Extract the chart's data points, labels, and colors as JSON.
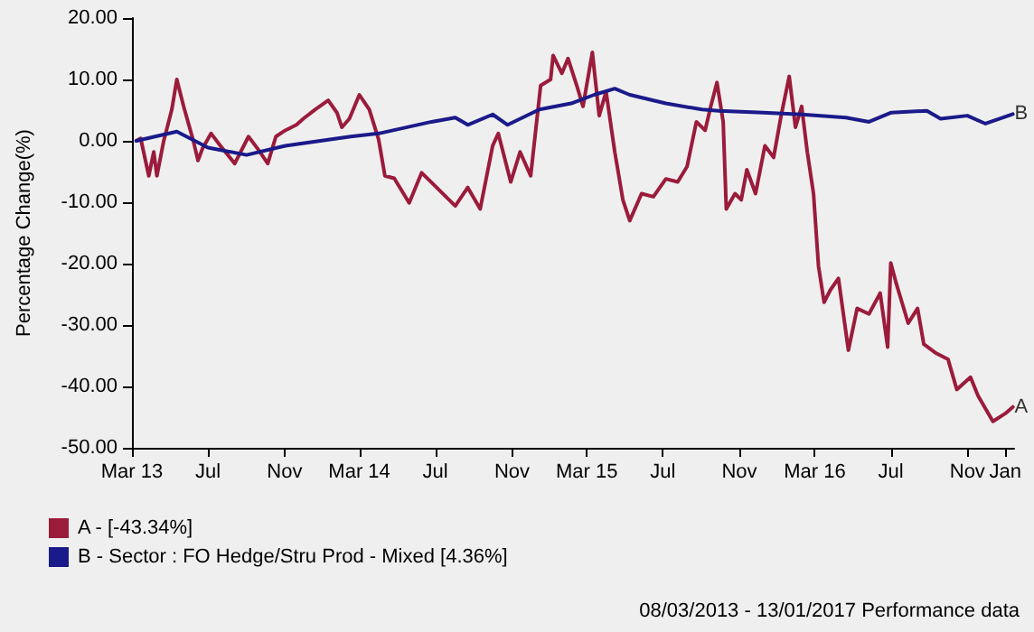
{
  "chart_data": {
    "type": "line",
    "ylabel": "Percentage Change(%)",
    "xlim": [
      "2013-03-01",
      "2017-01-15"
    ],
    "xticks": [
      {
        "value": "2013-03-01",
        "label": "Mar 13"
      },
      {
        "value": "2013-07-01",
        "label": "Jul"
      },
      {
        "value": "2013-11-01",
        "label": "Nov"
      },
      {
        "value": "2014-03-01",
        "label": "Mar 14"
      },
      {
        "value": "2014-07-01",
        "label": "Jul"
      },
      {
        "value": "2014-11-01",
        "label": "Nov"
      },
      {
        "value": "2015-03-01",
        "label": "Mar 15"
      },
      {
        "value": "2015-07-01",
        "label": "Jul"
      },
      {
        "value": "2015-11-01",
        "label": "Nov"
      },
      {
        "value": "2016-03-01",
        "label": "Mar 16"
      },
      {
        "value": "2016-07-01",
        "label": "Jul"
      },
      {
        "value": "2016-11-01",
        "label": "Nov"
      },
      {
        "value": "2017-01-01",
        "label": "Jan"
      }
    ],
    "ylim": [
      -50,
      20
    ],
    "yticks": [
      {
        "value": -50,
        "label": "-50.00"
      },
      {
        "value": -40,
        "label": "-40.00"
      },
      {
        "value": -30,
        "label": "-30.00"
      },
      {
        "value": -20,
        "label": "-20.00"
      },
      {
        "value": -10,
        "label": "-10.00"
      },
      {
        "value": 0,
        "label": "0.00"
      },
      {
        "value": 10,
        "label": "10.00"
      },
      {
        "value": 20,
        "label": "20.00"
      }
    ],
    "series": [
      {
        "name": "A - [-43.34%]",
        "color": "#9b1b3b",
        "x": [
          "2013-03-08",
          "2013-03-15",
          "2013-03-28",
          "2013-04-05",
          "2013-04-10",
          "2013-04-21",
          "2013-05-04",
          "2013-05-12",
          "2013-05-23",
          "2013-06-07",
          "2013-06-15",
          "2013-06-22",
          "2013-07-06",
          "2013-07-21",
          "2013-08-13",
          "2013-09-04",
          "2013-09-19",
          "2013-10-05",
          "2013-10-18",
          "2013-11-02",
          "2013-11-20",
          "2013-12-01",
          "2013-12-20",
          "2014-01-10",
          "2014-01-24",
          "2014-02-01",
          "2014-02-13",
          "2014-03-01",
          "2014-03-17",
          "2014-04-01",
          "2014-04-11",
          "2014-04-26",
          "2014-05-20",
          "2014-06-09",
          "2014-07-03",
          "2014-08-02",
          "2014-08-22",
          "2014-09-11",
          "2014-10-01",
          "2014-10-10",
          "2014-10-30",
          "2014-11-14",
          "2014-12-01",
          "2014-12-17",
          "2015-01-02",
          "2015-01-06",
          "2015-01-20",
          "2015-01-30",
          "2015-02-13",
          "2015-02-23",
          "2015-03-10",
          "2015-03-21",
          "2015-04-01",
          "2015-04-15",
          "2015-04-28",
          "2015-05-09",
          "2015-05-28",
          "2015-06-16",
          "2015-07-06",
          "2015-07-25",
          "2015-08-09",
          "2015-08-24",
          "2015-09-07",
          "2015-09-16",
          "2015-09-26",
          "2015-10-06",
          "2015-10-11",
          "2015-10-25",
          "2015-11-04",
          "2015-11-13",
          "2015-11-27",
          "2015-12-12",
          "2015-12-26",
          "2016-01-07",
          "2016-01-20",
          "2016-01-30",
          "2016-02-09",
          "2016-02-18",
          "2016-02-28",
          "2016-03-07",
          "2016-03-16",
          "2016-03-26",
          "2016-04-08",
          "2016-04-24",
          "2016-05-08",
          "2016-05-27",
          "2016-06-14",
          "2016-06-26",
          "2016-07-01",
          "2016-07-10",
          "2016-07-29",
          "2016-08-13",
          "2016-08-23",
          "2016-09-12",
          "2016-10-01",
          "2016-10-15",
          "2016-11-06",
          "2016-11-18",
          "2016-12-12",
          "2017-01-01",
          "2017-01-13"
        ],
        "values": [
          0,
          0.4,
          -5.7,
          -1.8,
          -5.7,
          0,
          5.1,
          10,
          5.6,
          0.2,
          -3.2,
          -1.3,
          1.2,
          -0.8,
          -3.7,
          0.7,
          -1.3,
          -3.7,
          0.7,
          1.7,
          2.6,
          3.6,
          5.1,
          6.6,
          4.6,
          2.2,
          3.6,
          7.5,
          5.1,
          0.2,
          -5.7,
          -6.1,
          -10.1,
          -5.2,
          -7.6,
          -10.6,
          -7.6,
          -11.1,
          -0.8,
          1.2,
          -6.7,
          -1.8,
          -5.7,
          9,
          10,
          13.9,
          11,
          13.4,
          9,
          5.6,
          14.4,
          4.1,
          8,
          -1.8,
          -9.6,
          -13,
          -8.6,
          -9.1,
          -6.2,
          -6.7,
          -4.2,
          3.1,
          1.7,
          5.6,
          9.5,
          3.1,
          -11.1,
          -8.6,
          -9.6,
          -4.7,
          -8.6,
          -0.8,
          -2.7,
          4.1,
          10.5,
          2.2,
          5.6,
          -1.8,
          -8.6,
          -20.4,
          -26.3,
          -24.3,
          -22.4,
          -34.1,
          -27.3,
          -28.2,
          -24.8,
          -33.6,
          -19.9,
          -23.3,
          -29.7,
          -27.3,
          -33.1,
          -34.6,
          -35.6,
          -40.5,
          -38.5,
          -41.5,
          -45.7,
          -44.4,
          -43.34
        ]
      },
      {
        "name": "B - Sector : FO Hedge/Stru Prod - Mixed [4.36%]",
        "color": "#1a1a8a",
        "x": [
          "2013-03-08",
          "2013-05-12",
          "2013-07-01",
          "2013-09-01",
          "2013-11-02",
          "2014-02-15",
          "2014-04-01",
          "2014-06-25",
          "2014-08-02",
          "2014-08-22",
          "2014-10-01",
          "2014-10-25",
          "2014-12-15",
          "2015-02-04",
          "2015-03-13",
          "2015-04-15",
          "2015-05-09",
          "2015-07-06",
          "2015-09-02",
          "2015-09-29",
          "2015-12-09",
          "2016-02-09",
          "2016-04-20",
          "2016-05-27",
          "2016-07-02",
          "2016-08-28",
          "2016-09-19",
          "2016-11-01",
          "2016-11-30",
          "2017-01-13"
        ],
        "values": [
          0,
          1.5,
          -1.1,
          -2.3,
          -0.8,
          0.7,
          1.2,
          3.1,
          3.8,
          2.6,
          4.3,
          2.6,
          5.1,
          6.1,
          7.5,
          8.5,
          7.5,
          6.1,
          5.1,
          4.9,
          4.6,
          4.3,
          3.8,
          3.1,
          4.6,
          4.9,
          3.6,
          4.1,
          2.8,
          4.36
        ]
      }
    ],
    "annotations": [
      {
        "text": "A",
        "x": "2017-01-13",
        "y": -43.34
      },
      {
        "text": "B",
        "x": "2017-01-13",
        "y": 4.36
      },
      "08/03/2013 - 13/01/2017 Performance data"
    ],
    "legend": "bottom left",
    "marker": "none",
    "line_style": "solid",
    "grid": false
  }
}
